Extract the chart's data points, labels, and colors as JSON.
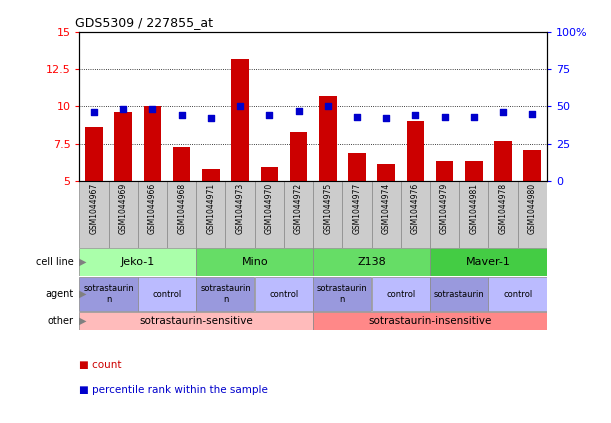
{
  "title": "GDS5309 / 227855_at",
  "samples": [
    "GSM1044967",
    "GSM1044969",
    "GSM1044966",
    "GSM1044968",
    "GSM1044971",
    "GSM1044973",
    "GSM1044970",
    "GSM1044972",
    "GSM1044975",
    "GSM1044977",
    "GSM1044974",
    "GSM1044976",
    "GSM1044979",
    "GSM1044981",
    "GSM1044978",
    "GSM1044980"
  ],
  "counts": [
    8.6,
    9.6,
    10.0,
    7.3,
    5.8,
    13.2,
    5.9,
    8.3,
    10.7,
    6.9,
    6.1,
    9.0,
    6.3,
    6.3,
    7.7,
    7.1
  ],
  "percentiles": [
    46,
    48,
    48,
    44,
    42,
    50,
    44,
    47,
    50,
    43,
    42,
    44,
    43,
    43,
    46,
    45
  ],
  "ylim_left": [
    5,
    15
  ],
  "ylim_right": [
    0,
    100
  ],
  "yticks_left": [
    5,
    7.5,
    10,
    12.5,
    15
  ],
  "yticks_right": [
    0,
    25,
    50,
    75,
    100
  ],
  "ytick_labels_left": [
    "5",
    "7.5",
    "10",
    "12.5",
    "15"
  ],
  "ytick_labels_right": [
    "0",
    "25",
    "50",
    "75",
    "100%"
  ],
  "bar_color": "#cc0000",
  "dot_color": "#0000cc",
  "cell_lines": [
    {
      "label": "Jeko-1",
      "start": 0,
      "end": 4,
      "color": "#aaffaa"
    },
    {
      "label": "Mino",
      "start": 4,
      "end": 8,
      "color": "#66dd66"
    },
    {
      "label": "Z138",
      "start": 8,
      "end": 12,
      "color": "#66dd66"
    },
    {
      "label": "Maver-1",
      "start": 12,
      "end": 16,
      "color": "#44cc44"
    }
  ],
  "agent_spans": [
    {
      "label": "sotrastaurin\nn",
      "start": 0,
      "end": 2,
      "type": "s"
    },
    {
      "label": "control",
      "start": 2,
      "end": 4,
      "type": "c"
    },
    {
      "label": "sotrastaurin\nn",
      "start": 4,
      "end": 6,
      "type": "s"
    },
    {
      "label": "control",
      "start": 6,
      "end": 8,
      "type": "c"
    },
    {
      "label": "sotrastaurin\nn",
      "start": 8,
      "end": 10,
      "type": "s"
    },
    {
      "label": "control",
      "start": 10,
      "end": 12,
      "type": "c"
    },
    {
      "label": "sotrastaurin",
      "start": 12,
      "end": 14,
      "type": "s"
    },
    {
      "label": "control",
      "start": 14,
      "end": 16,
      "type": "c"
    }
  ],
  "agent_color_s": "#9999dd",
  "agent_color_c": "#bbbbff",
  "other_spans": [
    {
      "label": "sotrastaurin-sensitive",
      "start": 0,
      "end": 8,
      "color": "#ffbbbb"
    },
    {
      "label": "sotrastaurin-insensitive",
      "start": 8,
      "end": 16,
      "color": "#ff8888"
    }
  ],
  "legend_count_color": "#cc0000",
  "legend_dot_color": "#0000cc"
}
